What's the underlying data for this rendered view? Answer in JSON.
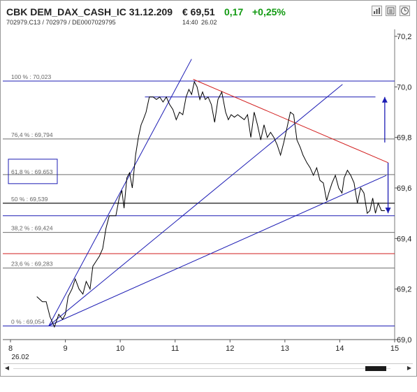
{
  "header": {
    "title": "CBK DEM_DAX_CASH_IC 31.12.209",
    "price": "€ 69,51",
    "change_abs": "0,17",
    "change_pct": "+0,25%",
    "ids": "702979.C13  /  702979  /  DE0007029795",
    "time": "14:40",
    "date": "26.02",
    "icons": [
      "bar-chart-icon",
      "news-icon",
      "clock-icon"
    ]
  },
  "colors": {
    "price_line": "#000000",
    "trend_lines": "#1c1cb4",
    "resistance_line": "#d21e1e",
    "fib_levels": "#6e6e6e",
    "fib_box_border": "#1c1cb4",
    "arrow": "#1c1cb4"
  },
  "chart_data": {
    "type": "line",
    "title": "",
    "xlabel": "",
    "ylabel": "",
    "xlim": [
      8,
      15
    ],
    "ylim": [
      69.0,
      70.2
    ],
    "x_ticks": [
      "8",
      "9",
      "10",
      "11",
      "12",
      "13",
      "14",
      "15"
    ],
    "x_date_label": "26.02",
    "y_ticks": [
      "70,2",
      "70,0",
      "69,8",
      "69,6",
      "69,4",
      "69,2",
      "69,0"
    ],
    "grid": false,
    "series": [
      {
        "x": [
          8.48,
          8.58,
          8.65,
          8.72,
          8.8,
          8.88,
          8.95,
          9.0,
          9.05,
          9.12,
          9.18,
          9.25,
          9.32,
          9.38,
          9.45,
          9.5,
          9.56,
          9.62,
          9.68,
          9.74,
          9.8,
          9.85,
          9.88,
          9.92,
          9.98,
          10.03,
          10.07,
          10.12,
          10.17,
          10.22,
          10.28,
          10.33,
          10.38,
          10.42,
          10.47,
          10.53,
          10.6,
          10.66,
          10.72,
          10.78,
          10.84,
          10.9,
          10.96,
          11.02,
          11.08,
          11.14,
          11.2,
          11.25,
          11.3,
          11.35,
          11.4,
          11.45,
          11.5,
          11.55,
          11.6,
          11.66,
          11.72,
          11.78,
          11.85,
          11.92,
          11.97,
          12.02,
          12.08,
          12.14,
          12.2,
          12.26,
          12.32,
          12.38,
          12.44,
          12.5,
          12.56,
          12.62,
          12.68,
          12.74,
          12.8,
          12.86,
          12.92,
          12.98,
          13.04,
          13.1,
          13.16,
          13.22,
          13.28,
          13.33,
          13.4,
          13.46,
          13.52,
          13.58,
          13.64,
          13.7,
          13.76,
          13.8,
          13.86,
          13.92,
          13.98,
          14.04,
          14.08,
          14.14,
          14.2,
          14.26,
          14.32,
          14.38,
          14.44,
          14.5,
          14.55,
          14.6,
          14.65,
          14.7,
          14.76,
          14.82
        ],
        "y": [
          69.17,
          69.15,
          69.15,
          69.09,
          69.05,
          69.1,
          69.08,
          69.1,
          69.17,
          69.2,
          69.24,
          69.2,
          69.18,
          69.23,
          69.2,
          69.29,
          69.31,
          69.33,
          69.36,
          69.44,
          69.49,
          69.49,
          69.49,
          69.49,
          69.56,
          69.59,
          69.52,
          69.64,
          69.66,
          69.6,
          69.73,
          69.8,
          69.85,
          69.87,
          69.9,
          69.96,
          69.96,
          69.95,
          69.96,
          69.94,
          69.96,
          69.93,
          69.91,
          69.87,
          69.9,
          69.89,
          69.96,
          69.99,
          69.97,
          70.02,
          70.0,
          69.95,
          69.98,
          69.95,
          69.96,
          69.93,
          69.86,
          69.95,
          69.98,
          69.9,
          69.87,
          69.89,
          69.88,
          69.89,
          69.88,
          69.87,
          69.89,
          69.8,
          69.9,
          69.85,
          69.79,
          69.85,
          69.8,
          69.82,
          69.8,
          69.77,
          69.73,
          69.78,
          69.84,
          69.9,
          69.89,
          69.79,
          69.76,
          69.73,
          69.7,
          69.68,
          69.65,
          69.68,
          69.63,
          69.62,
          69.55,
          69.58,
          69.62,
          69.65,
          69.6,
          69.58,
          69.64,
          69.67,
          69.65,
          69.62,
          69.54,
          69.6,
          69.58,
          69.5,
          69.51,
          69.56,
          69.5,
          69.54,
          69.51,
          69.51
        ]
      }
    ],
    "fib_levels": [
      {
        "label": "100 % : 70,023",
        "value": 70.023
      },
      {
        "label": "76,4 % : 69,794",
        "value": 69.794
      },
      {
        "label": "61,8 % : 69,653",
        "value": 69.653,
        "boxed": true
      },
      {
        "label": "50 % : 69,539",
        "value": 69.539
      },
      {
        "label": "38,2 % : 69,424",
        "value": 69.424
      },
      {
        "label": "23,6 % : 69,283",
        "value": 69.283
      },
      {
        "label": "0 % : 69,054",
        "value": 69.054
      }
    ],
    "horizontal_lines": [
      {
        "value": 69.96,
        "color": "blue",
        "x_from": 10.45,
        "x_to": 14.65
      },
      {
        "value": 69.54,
        "color": "black"
      },
      {
        "value": 69.49,
        "color": "blue"
      },
      {
        "value": 69.34,
        "color": "red"
      }
    ],
    "trend_lines": [
      {
        "color": "blue",
        "points": [
          [
            8.7,
            69.055
          ],
          [
            11.3,
            70.11
          ]
        ]
      },
      {
        "color": "blue",
        "points": [
          [
            8.7,
            69.055
          ],
          [
            14.05,
            70.01
          ]
        ]
      },
      {
        "color": "blue",
        "points": [
          [
            8.7,
            69.055
          ],
          [
            14.85,
            69.65
          ]
        ]
      },
      {
        "color": "red",
        "points": [
          [
            11.33,
            70.03
          ],
          [
            14.88,
            69.7
          ]
        ]
      }
    ],
    "arrows": [
      {
        "x": 14.82,
        "from": 69.78,
        "to": 69.96
      },
      {
        "x": 14.88,
        "from": 69.7,
        "to": 69.5
      }
    ]
  }
}
